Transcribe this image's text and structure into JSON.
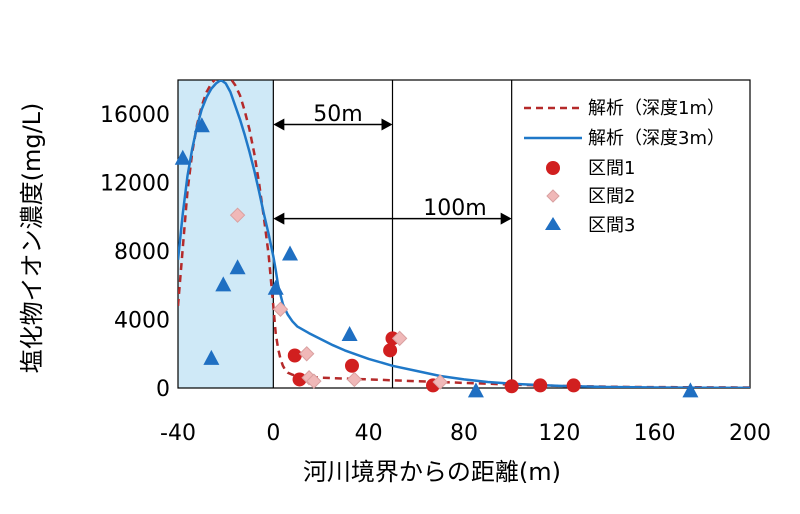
{
  "chart_data": {
    "type": "scatter",
    "xlabel": "河川境界からの距離(m)",
    "ylabel": "塩化物イオン濃度(mg/L)",
    "xlim": [
      -40,
      200
    ],
    "ylim": [
      0,
      18000
    ],
    "xticks": [
      -40,
      0,
      40,
      80,
      120,
      160,
      200
    ],
    "yticks": [
      0,
      4000,
      8000,
      12000,
      16000
    ],
    "x_tick_labels": [
      "-40",
      "0",
      "40",
      "80",
      "120",
      "160",
      "200"
    ],
    "y_tick_labels": [
      "0",
      "4000",
      "8000",
      "12000",
      "16000"
    ],
    "grid": false,
    "legend_position": "top-right",
    "shaded_region": {
      "x_from": -40,
      "x_to": 0,
      "color": "#cfe9f7"
    },
    "vertical_lines": [
      0,
      50,
      100
    ],
    "annotations": [
      {
        "text": "50m",
        "x_from": 0,
        "x_to": 50,
        "y": 15400
      },
      {
        "text": "100m",
        "x_from": 0,
        "x_to": 100,
        "y": 9900
      }
    ],
    "series": [
      {
        "name": "解析（深度1m）",
        "kind": "line",
        "style": "dashed",
        "color": "#b52a2a",
        "x": [
          -40,
          -38,
          -36,
          -34,
          -32,
          -30,
          -28,
          -26,
          -24,
          -22,
          -20,
          -18,
          -16,
          -14,
          -12,
          -10,
          -8,
          -6,
          -4,
          -2,
          0,
          1,
          2,
          3,
          4,
          5,
          6,
          8,
          10,
          14,
          20,
          30,
          40,
          50,
          60,
          70,
          80,
          90,
          100,
          120,
          150,
          200
        ],
        "y": [
          4800,
          8200,
          11500,
          13800,
          15400,
          16500,
          17300,
          17800,
          18100,
          18300,
          18300,
          18100,
          17700,
          17100,
          16200,
          15100,
          13700,
          12000,
          10000,
          7800,
          4800,
          3200,
          2300,
          1700,
          1300,
          1050,
          900,
          780,
          700,
          650,
          600,
          550,
          500,
          450,
          400,
          350,
          300,
          250,
          200,
          120,
          60,
          30
        ]
      },
      {
        "name": "解析（深度3m）",
        "kind": "line",
        "style": "solid",
        "color": "#1f78c8",
        "x": [
          -40,
          -38,
          -36,
          -34,
          -32,
          -30,
          -28,
          -26,
          -24,
          -22,
          -20,
          -18,
          -16,
          -14,
          -12,
          -10,
          -8,
          -6,
          -4,
          -2,
          0,
          1,
          2,
          4,
          6,
          8,
          10,
          15,
          20,
          25,
          30,
          40,
          50,
          60,
          70,
          80,
          90,
          100,
          110,
          120,
          140,
          160,
          180,
          200
        ],
        "y": [
          7500,
          10200,
          12400,
          14000,
          15300,
          16300,
          17000,
          17500,
          17800,
          18000,
          17800,
          17300,
          16500,
          15700,
          14800,
          13800,
          12700,
          11500,
          10200,
          9000,
          7700,
          6900,
          6000,
          4900,
          4300,
          3900,
          3600,
          3200,
          2850,
          2500,
          2200,
          1700,
          1300,
          1000,
          700,
          500,
          350,
          250,
          180,
          120,
          60,
          30,
          15,
          5
        ]
      },
      {
        "name": "区間1",
        "kind": "scatter",
        "marker": "circle",
        "color": "#d11f1f",
        "x": [
          9,
          11,
          33,
          49,
          50,
          67,
          100,
          112,
          126
        ],
        "y": [
          1900,
          500,
          1300,
          2200,
          2900,
          150,
          100,
          150,
          150
        ]
      },
      {
        "name": "区間2",
        "kind": "scatter",
        "marker": "diamond",
        "color": "#f0b8b8",
        "x": [
          -15,
          3,
          14,
          15,
          17,
          34,
          53,
          70
        ],
        "y": [
          10100,
          4600,
          2000,
          600,
          400,
          500,
          2900,
          350
        ]
      },
      {
        "name": "区間3",
        "kind": "scatter",
        "marker": "triangle",
        "color": "#1f6fc2",
        "x": [
          -38,
          -30,
          -26,
          -21,
          -15,
          1,
          7,
          32,
          85,
          175
        ],
        "y": [
          13400,
          15300,
          1700,
          6000,
          7000,
          5800,
          7800,
          3100,
          -200,
          -200
        ]
      }
    ]
  }
}
